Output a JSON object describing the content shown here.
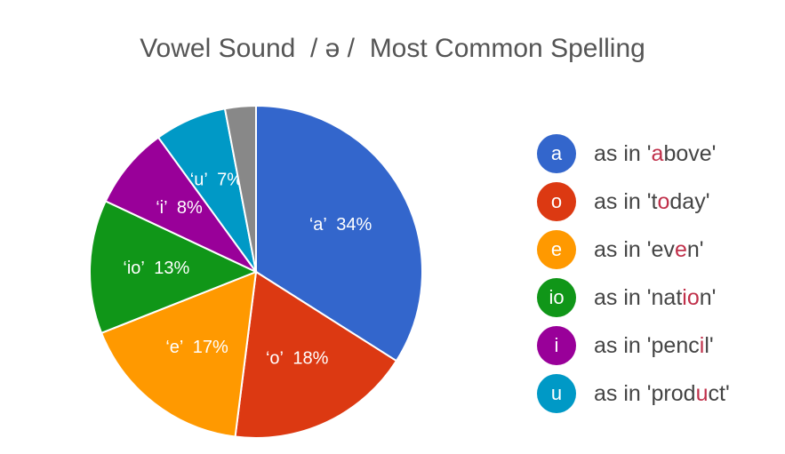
{
  "title": "Vowel Sound  / ə /  Most Common Spelling",
  "colors": {
    "a": "#3366cc",
    "o": "#dc3912",
    "e": "#ff9900",
    "io": "#109618",
    "i": "#990099",
    "u": "#0099c6",
    "other": "#888888",
    "highlight": "#c0304a"
  },
  "chart_data": {
    "type": "pie",
    "title": "Vowel Sound  / ə /  Most Common Spelling",
    "series": [
      {
        "name": "a",
        "value": 34,
        "label": "‘a’  34%",
        "color": "#3366cc"
      },
      {
        "name": "o",
        "value": 18,
        "label": "‘o’  18%",
        "color": "#dc3912"
      },
      {
        "name": "e",
        "value": 17,
        "label": "‘e’  17%",
        "color": "#ff9900"
      },
      {
        "name": "io",
        "value": 13,
        "label": "‘io’  13%",
        "color": "#109618"
      },
      {
        "name": "i",
        "value": 8,
        "label": "‘i’  8%",
        "color": "#990099"
      },
      {
        "name": "u",
        "value": 7,
        "label": "‘u’  7%",
        "color": "#0099c6"
      },
      {
        "value": 3,
        "label": "",
        "color": "#888888"
      }
    ],
    "legend_position": "right"
  },
  "legend": [
    {
      "letter": "a",
      "color": "#3366cc",
      "prefix": "as in '",
      "before": "",
      "hl": "a",
      "after": "bove",
      "suffix": "'"
    },
    {
      "letter": "o",
      "color": "#dc3912",
      "prefix": "as in '",
      "before": "t",
      "hl": "o",
      "after": "day",
      "suffix": "'"
    },
    {
      "letter": "e",
      "color": "#ff9900",
      "prefix": "as in '",
      "before": "ev",
      "hl": "e",
      "after": "n",
      "suffix": "'"
    },
    {
      "letter": "io",
      "color": "#109618",
      "prefix": "as in '",
      "before": "nat",
      "hl": "io",
      "after": "n",
      "suffix": "'"
    },
    {
      "letter": "i",
      "color": "#990099",
      "prefix": "as in '",
      "before": "penc",
      "hl": "i",
      "after": "l",
      "suffix": "'"
    },
    {
      "letter": "u",
      "color": "#0099c6",
      "prefix": "as in '",
      "before": "prod",
      "hl": "u",
      "after": "ct",
      "suffix": "'"
    }
  ]
}
